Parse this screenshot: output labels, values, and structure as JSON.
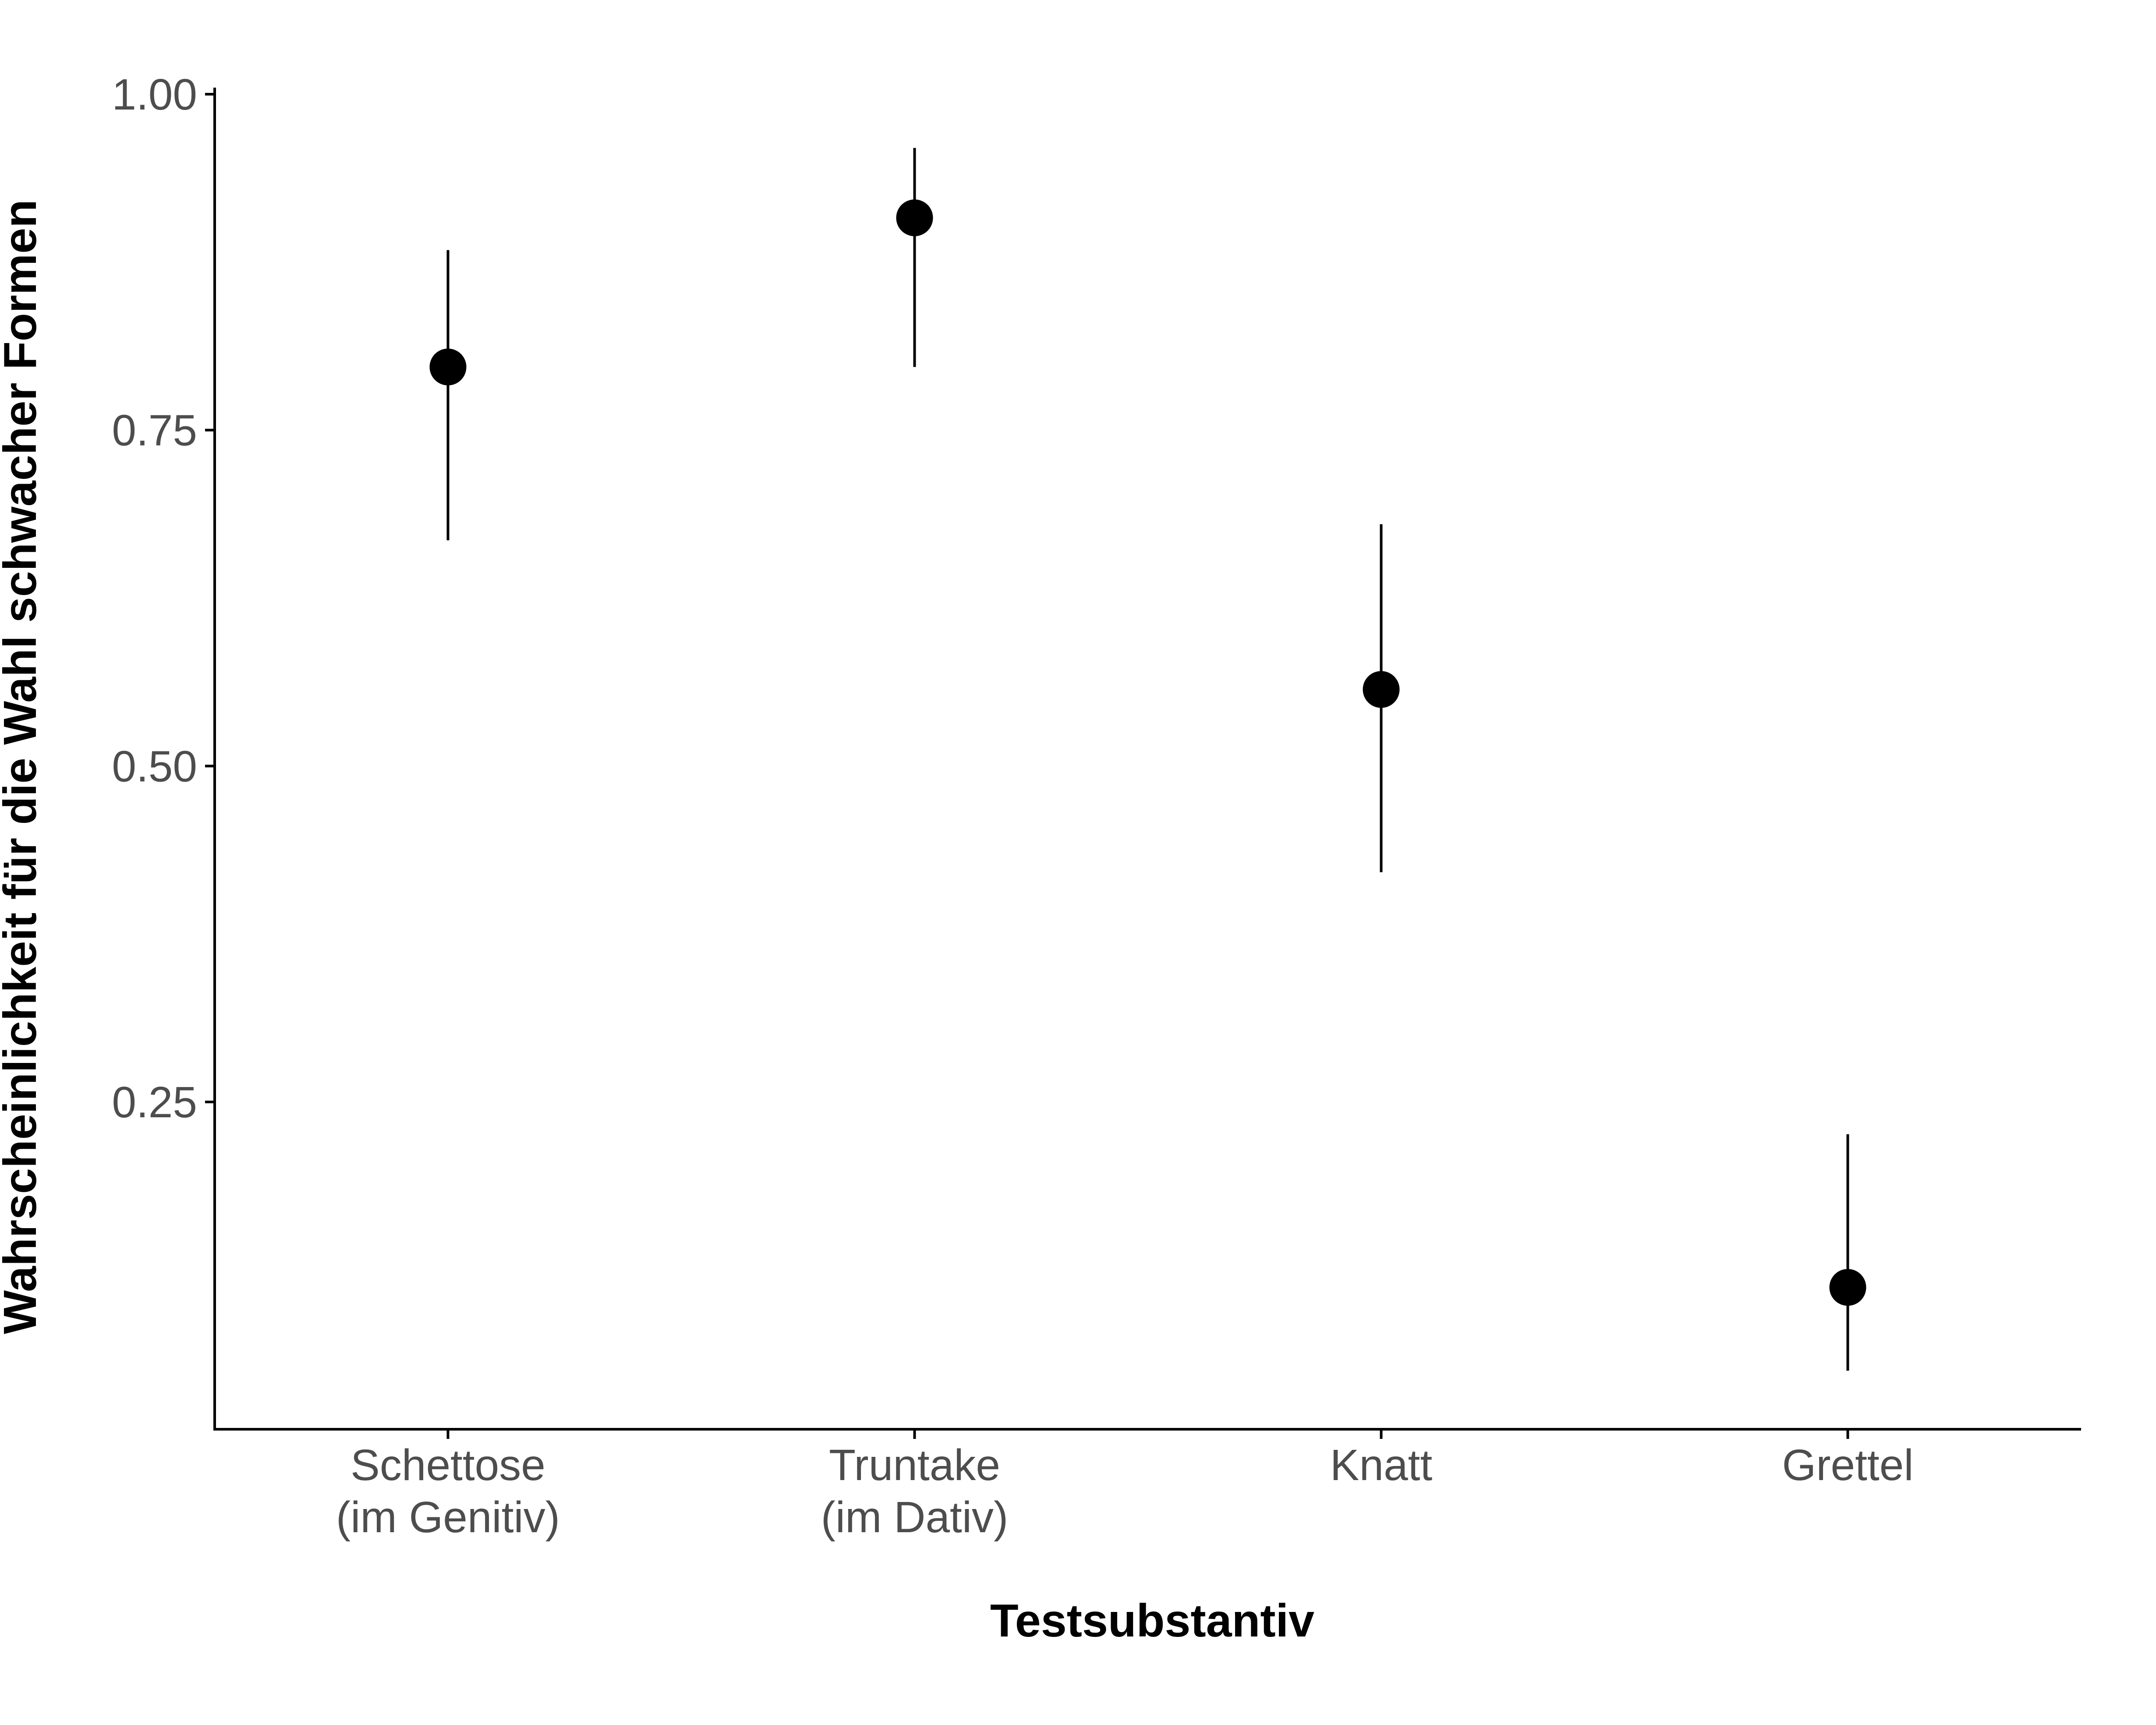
{
  "chart_data": {
    "type": "scatter",
    "title": "",
    "xlabel": "Testsubstantiv",
    "ylabel": "Wahrscheinlichkeit für die Wahl schwacher Formen",
    "ylim": [
      0,
      1
    ],
    "yticks": [
      "0.25",
      "0.50",
      "0.75",
      "1.00"
    ],
    "ytick_values": [
      0.25,
      0.5,
      0.75,
      1.0
    ],
    "grid": false,
    "categories": [
      {
        "line1": "Schettose",
        "line2": "(im Genitiv)"
      },
      {
        "line1": "Truntake",
        "line2": "(im Dativ)"
      },
      {
        "line1": "Knatt",
        "line2": ""
      },
      {
        "line1": "Grettel",
        "line2": ""
      }
    ],
    "series": [
      {
        "values": [
          0.797,
          0.908,
          0.557,
          0.112
        ],
        "lower": [
          0.668,
          0.797,
          0.421,
          0.05
        ],
        "upper": [
          0.884,
          0.96,
          0.68,
          0.226
        ]
      }
    ],
    "colors": {
      "point": "#000000",
      "axis": "#000000",
      "tick_text": "#4d4d4d"
    }
  }
}
